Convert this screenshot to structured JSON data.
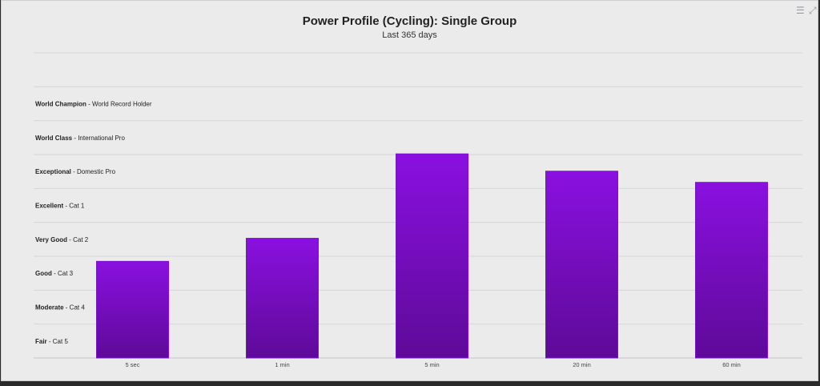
{
  "chart_data": {
    "type": "bar",
    "title": "Power Profile (Cycling): Single Group",
    "subtitle": "Last 365 days",
    "categories": [
      "5 sec",
      "1 min",
      "5 min",
      "20 min",
      "60 min"
    ],
    "values": [
      2.85,
      3.53,
      6.02,
      5.51,
      5.18
    ],
    "ylim": [
      0,
      9
    ],
    "grid": true,
    "bands": [
      {
        "bold": "Fair",
        "rest": " - Cat 5"
      },
      {
        "bold": "Moderate",
        "rest": " - Cat 4"
      },
      {
        "bold": "Good",
        "rest": " - Cat 3"
      },
      {
        "bold": "Very Good",
        "rest": " - Cat 2"
      },
      {
        "bold": "Excellent",
        "rest": " - Cat 1"
      },
      {
        "bold": "Exceptional",
        "rest": " - Domestic Pro"
      },
      {
        "bold": "World Class",
        "rest": " - International Pro"
      },
      {
        "bold": "World Champion",
        "rest": " - World Record Holder"
      }
    ],
    "colors": {
      "bar_top": "#8a10e0",
      "bar_bottom": "#5e0a98",
      "bar_edge": "#7a12d0",
      "grid": "#d6d6da"
    }
  },
  "toolbar": {
    "menu_icon": "menu-icon",
    "expand_icon": "expand-icon"
  }
}
